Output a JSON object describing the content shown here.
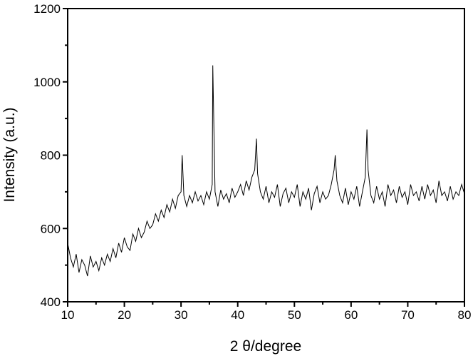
{
  "chart_data": {
    "type": "line",
    "x_label": "2 θ/degree",
    "y_label": "Intensity (a.u.)",
    "xlim": [
      10,
      80
    ],
    "xticks": [
      10,
      20,
      30,
      40,
      50,
      60,
      70,
      80
    ],
    "xminorticks": [
      15,
      25,
      35,
      45,
      55,
      65,
      75
    ],
    "ylim": [
      400,
      1200
    ],
    "yticks": [
      400,
      600,
      800,
      1000,
      1200
    ],
    "yminorticks": [
      500,
      700,
      900,
      1100
    ],
    "series": [
      {
        "color": "#000000",
        "x": [
          10,
          10.5,
          11,
          11.5,
          12,
          12.5,
          13,
          13.5,
          14,
          14.5,
          15,
          15.5,
          16,
          16.5,
          17,
          17.5,
          18,
          18.5,
          19,
          19.5,
          20,
          20.5,
          21,
          21.5,
          22,
          22.5,
          23,
          23.5,
          24,
          24.5,
          25,
          25.5,
          26,
          26.5,
          27,
          27.5,
          28,
          28.5,
          29,
          29.5,
          30,
          30.2,
          30.5,
          31,
          31.5,
          32,
          32.5,
          33,
          33.5,
          34,
          34.5,
          35,
          35.5,
          35.6,
          36,
          36.5,
          37,
          37.5,
          38,
          38.5,
          39,
          39.5,
          40,
          40.5,
          41,
          41.5,
          42,
          42.5,
          43,
          43.3,
          43.5,
          44,
          44.5,
          45,
          45.5,
          46,
          46.5,
          47,
          47.5,
          48,
          48.5,
          49,
          49.5,
          50,
          50.5,
          51,
          51.5,
          52,
          52.5,
          53,
          53.5,
          54,
          54.5,
          55,
          55.5,
          56,
          56.5,
          57,
          57.2,
          57.5,
          58,
          58.5,
          59,
          59.5,
          60,
          60.5,
          61,
          61.5,
          62,
          62.5,
          62.8,
          63,
          63.5,
          64,
          64.5,
          65,
          65.5,
          66,
          66.5,
          67,
          67.5,
          68,
          68.5,
          69,
          69.5,
          70,
          70.5,
          71,
          71.5,
          72,
          72.5,
          73,
          73.5,
          74,
          74.5,
          75,
          75.5,
          76,
          76.5,
          77,
          77.5,
          78,
          78.5,
          79,
          79.5,
          80
        ],
        "values": [
          560,
          520,
          495,
          530,
          480,
          515,
          500,
          470,
          525,
          495,
          510,
          485,
          520,
          500,
          530,
          510,
          545,
          520,
          560,
          535,
          575,
          550,
          540,
          585,
          565,
          600,
          575,
          590,
          620,
          600,
          610,
          640,
          620,
          650,
          630,
          665,
          645,
          680,
          655,
          690,
          700,
          800,
          690,
          660,
          690,
          670,
          700,
          675,
          690,
          665,
          700,
          680,
          720,
          1045,
          700,
          660,
          705,
          680,
          695,
          670,
          710,
          685,
          700,
          720,
          690,
          730,
          705,
          740,
          760,
          845,
          750,
          700,
          680,
          715,
          670,
          700,
          685,
          720,
          660,
          695,
          710,
          670,
          700,
          685,
          720,
          660,
          700,
          680,
          710,
          650,
          695,
          715,
          670,
          700,
          680,
          690,
          720,
          760,
          800,
          730,
          690,
          670,
          710,
          665,
          700,
          680,
          715,
          660,
          700,
          740,
          870,
          760,
          690,
          670,
          715,
          680,
          700,
          660,
          720,
          690,
          705,
          670,
          715,
          685,
          700,
          665,
          720,
          690,
          700,
          675,
          715,
          680,
          720,
          690,
          705,
          670,
          730,
          690,
          700,
          675,
          715,
          680,
          700,
          690,
          720,
          695
        ]
      }
    ]
  }
}
